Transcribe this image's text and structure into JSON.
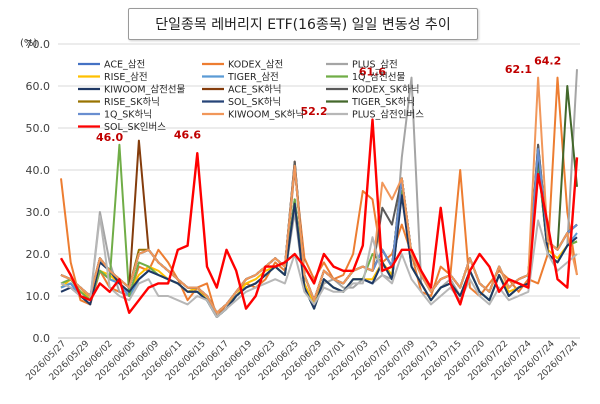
{
  "chart_data": {
    "type": "line",
    "title": "단일종목 레버리지 ETF(16종목) 일일 변동성 추이",
    "ylabel": "(%)",
    "xlabel": "",
    "ylim": [
      0,
      70
    ],
    "yticks": [
      "0.0",
      "10.0",
      "20.0",
      "30.0",
      "40.0",
      "50.0",
      "60.0",
      "70.0"
    ],
    "grid": true,
    "legend_position": "top-left",
    "x_tick_labels": [
      "2026/05/27",
      "2026/05/29",
      "2026/06/02",
      "2026/06/05",
      "2026/06/09",
      "2026/06/11",
      "2026/06/15",
      "2026/06/17",
      "2026/06/19",
      "2026/06/23",
      "2026/06/25",
      "2026/06/29",
      "2026/07/01",
      "2026/07/03",
      "2026/07/07",
      "2026/07/09",
      "2026/07/13",
      "2026/07/15",
      "2026/07/20",
      "2026/07/22",
      "2026/07/24",
      "2026/07/24",
      "2026/07/24"
    ],
    "annotations": [
      {
        "text": "46.0",
        "color": "#c00000",
        "index": 7,
        "value": 46.0
      },
      {
        "text": "46.6",
        "color": "#c00000",
        "index": 15,
        "value": 46.6
      },
      {
        "text": "52.2",
        "color": "#c00000",
        "index": 28,
        "value": 52.2
      },
      {
        "text": "61.6",
        "color": "#c00000",
        "index": 34,
        "value": 61.6
      },
      {
        "text": "62.1",
        "color": "#c00000",
        "index": 49,
        "value": 62.1
      },
      {
        "text": "64.2",
        "color": "#c00000",
        "index": 52,
        "value": 64.2
      }
    ],
    "series": [
      {
        "name": "ACE_삼전",
        "color": "#4472c4",
        "width": 2,
        "values": [
          12,
          13,
          10,
          8,
          16,
          14,
          13,
          10,
          14,
          16,
          15,
          14,
          13,
          11,
          11,
          9,
          5,
          7,
          10,
          12,
          13,
          15,
          17,
          15,
          33,
          12,
          7,
          14,
          12,
          11,
          14,
          14,
          13,
          18,
          14,
          35,
          17,
          13,
          9,
          12,
          13,
          10,
          16,
          11,
          9,
          15,
          10,
          12,
          13,
          42,
          20,
          18,
          22,
          23
        ]
      },
      {
        "name": "KODEX_삼전",
        "color": "#ed7d31",
        "width": 2,
        "values": [
          38,
          18,
          9,
          8,
          16,
          12,
          11,
          10,
          17,
          16,
          21,
          18,
          14,
          9,
          12,
          13,
          5,
          8,
          11,
          13,
          12,
          14,
          18,
          16,
          40,
          19,
          14,
          18,
          14,
          15,
          20,
          35,
          33,
          18,
          20,
          27,
          20,
          11,
          10,
          17,
          15,
          40,
          12,
          10,
          13,
          16,
          14,
          11,
          14,
          13,
          20,
          62,
          30,
          15
        ]
      },
      {
        "name": "PLUS_삼전",
        "color": "#a5a5a5",
        "width": 2,
        "values": [
          12,
          13,
          11,
          9,
          30,
          18,
          11,
          10,
          14,
          16,
          15,
          14,
          13,
          11,
          11,
          9,
          5,
          7,
          10,
          12,
          13,
          15,
          17,
          15,
          30,
          12,
          7,
          13,
          14,
          12,
          12,
          14,
          13,
          15,
          14,
          43,
          62,
          13,
          9,
          12,
          14,
          10,
          16,
          11,
          9,
          15,
          10,
          12,
          13,
          42,
          20,
          18,
          22,
          64
        ]
      },
      {
        "name": "RISE_삼전",
        "color": "#ffc000",
        "width": 2,
        "values": [
          12,
          14,
          12,
          9,
          16,
          15,
          13,
          11,
          15,
          17,
          16,
          14,
          13,
          11,
          12,
          9,
          6,
          8,
          10,
          13,
          14,
          16,
          17,
          15,
          33,
          13,
          8,
          14,
          12,
          11,
          14,
          14,
          14,
          18,
          15,
          35,
          17,
          13,
          9,
          12,
          13,
          10,
          16,
          11,
          9,
          15,
          11,
          12,
          13,
          42,
          21,
          19,
          22,
          23
        ]
      },
      {
        "name": "TIGER_삼전",
        "color": "#5b9bd5",
        "width": 2,
        "values": [
          12,
          13,
          10,
          9,
          16,
          14,
          13,
          10,
          14,
          16,
          15,
          14,
          13,
          11,
          11,
          9,
          5,
          7,
          10,
          12,
          13,
          15,
          17,
          15,
          33,
          12,
          7,
          14,
          12,
          11,
          14,
          14,
          13,
          18,
          14,
          35,
          17,
          13,
          9,
          12,
          13,
          10,
          16,
          11,
          9,
          15,
          10,
          12,
          13,
          43,
          20,
          18,
          22,
          25
        ]
      },
      {
        "name": "1Q_삼전선물",
        "color": "#70ad47",
        "width": 2,
        "values": [
          13,
          14,
          11,
          9,
          16,
          14,
          46,
          10,
          18,
          17,
          15,
          14,
          13,
          11,
          11,
          9,
          5,
          7,
          10,
          12,
          13,
          15,
          17,
          15,
          33,
          12,
          7,
          14,
          12,
          11,
          14,
          14,
          20,
          18,
          14,
          35,
          17,
          13,
          9,
          12,
          13,
          10,
          16,
          11,
          9,
          15,
          10,
          12,
          13,
          42,
          20,
          18,
          22,
          23
        ]
      },
      {
        "name": "KIWOOM_삼전선물",
        "color": "#1f3864",
        "width": 2,
        "values": [
          11,
          12,
          10,
          8,
          18,
          16,
          13,
          11,
          14,
          16,
          15,
          14,
          13,
          11,
          11,
          9,
          5,
          7,
          10,
          12,
          13,
          15,
          17,
          15,
          32,
          12,
          7,
          14,
          12,
          11,
          14,
          14,
          13,
          18,
          14,
          34,
          17,
          13,
          9,
          12,
          13,
          10,
          16,
          11,
          9,
          15,
          10,
          12,
          13,
          44,
          20,
          18,
          22,
          24
        ]
      },
      {
        "name": "ACE_SK하닉",
        "color": "#843c0c",
        "width": 2,
        "values": [
          15,
          14,
          12,
          10,
          19,
          16,
          14,
          12,
          47,
          21,
          18,
          16,
          14,
          12,
          12,
          10,
          6,
          8,
          11,
          14,
          15,
          17,
          19,
          17,
          42,
          15,
          9,
          16,
          14,
          13,
          16,
          17,
          16,
          21,
          17,
          38,
          20,
          15,
          11,
          14,
          15,
          12,
          19,
          13,
          11,
          17,
          12,
          14,
          15,
          46,
          23,
          21,
          25,
          27
        ]
      },
      {
        "name": "KODEX_SK하닉",
        "color": "#595959",
        "width": 2,
        "values": [
          15,
          14,
          12,
          10,
          19,
          16,
          14,
          12,
          20,
          21,
          18,
          16,
          14,
          12,
          12,
          10,
          6,
          8,
          11,
          14,
          15,
          17,
          19,
          17,
          42,
          15,
          9,
          16,
          14,
          13,
          16,
          17,
          16,
          31,
          27,
          38,
          20,
          15,
          11,
          14,
          15,
          12,
          19,
          13,
          11,
          17,
          12,
          14,
          15,
          46,
          23,
          21,
          25,
          27
        ]
      },
      {
        "name": "RISE_SK하닉",
        "color": "#997300",
        "width": 2,
        "values": [
          15,
          14,
          12,
          10,
          19,
          16,
          14,
          12,
          21,
          21,
          18,
          16,
          14,
          12,
          12,
          10,
          6,
          8,
          11,
          14,
          15,
          17,
          19,
          17,
          41,
          15,
          9,
          16,
          14,
          13,
          16,
          17,
          16,
          21,
          17,
          38,
          20,
          15,
          11,
          14,
          15,
          12,
          19,
          13,
          11,
          17,
          12,
          14,
          15,
          45,
          23,
          21,
          25,
          27
        ]
      },
      {
        "name": "SOL_SK하닉",
        "color": "#264478",
        "width": 2,
        "values": [
          15,
          14,
          12,
          10,
          19,
          16,
          14,
          12,
          20,
          21,
          18,
          16,
          14,
          12,
          12,
          10,
          6,
          8,
          11,
          14,
          15,
          17,
          19,
          17,
          41,
          15,
          9,
          16,
          14,
          13,
          16,
          17,
          16,
          21,
          17,
          38,
          20,
          15,
          11,
          14,
          15,
          12,
          19,
          13,
          11,
          17,
          12,
          14,
          15,
          45,
          23,
          21,
          25,
          27
        ]
      },
      {
        "name": "TIGER_SK하닉",
        "color": "#43682b",
        "width": 2,
        "values": [
          15,
          14,
          12,
          10,
          19,
          16,
          14,
          12,
          20,
          21,
          18,
          16,
          14,
          12,
          12,
          10,
          6,
          8,
          11,
          14,
          15,
          17,
          19,
          17,
          41,
          15,
          9,
          16,
          14,
          13,
          16,
          17,
          16,
          21,
          17,
          38,
          20,
          15,
          11,
          14,
          15,
          12,
          19,
          13,
          11,
          17,
          12,
          14,
          15,
          45,
          23,
          21,
          60,
          36
        ]
      },
      {
        "name": "1Q_SK하닉",
        "color": "#698ed0",
        "width": 2,
        "values": [
          15,
          14,
          12,
          10,
          19,
          16,
          14,
          12,
          20,
          21,
          18,
          16,
          14,
          12,
          12,
          10,
          6,
          8,
          11,
          14,
          15,
          17,
          19,
          17,
          41,
          15,
          9,
          16,
          14,
          13,
          16,
          17,
          16,
          21,
          17,
          38,
          20,
          15,
          11,
          14,
          15,
          12,
          19,
          13,
          11,
          17,
          12,
          14,
          15,
          45,
          23,
          21,
          25,
          27
        ]
      },
      {
        "name": "KIWOOM_SK하닉",
        "color": "#f1975a",
        "width": 2,
        "values": [
          15,
          14,
          12,
          10,
          19,
          16,
          14,
          12,
          20,
          21,
          18,
          16,
          14,
          12,
          12,
          10,
          6,
          8,
          11,
          14,
          15,
          17,
          19,
          17,
          41,
          15,
          9,
          16,
          14,
          13,
          16,
          17,
          16,
          37,
          33,
          38,
          20,
          15,
          11,
          14,
          15,
          12,
          19,
          13,
          11,
          17,
          12,
          14,
          15,
          62,
          23,
          21,
          25,
          15
        ]
      },
      {
        "name": "PLUS_삼전인버스",
        "color": "#b7b7b7",
        "width": 2,
        "values": [
          13,
          12,
          10,
          9,
          29,
          12,
          10,
          9,
          13,
          14,
          10,
          10,
          9,
          8,
          10,
          9,
          5,
          7,
          9,
          11,
          12,
          13,
          14,
          13,
          20,
          11,
          8,
          12,
          11,
          11,
          13,
          13,
          24,
          15,
          13,
          20,
          14,
          11,
          8,
          10,
          12,
          9,
          14,
          10,
          8,
          12,
          9,
          10,
          11,
          28,
          20,
          16,
          18,
          20
        ]
      },
      {
        "name": "SOL_SK인버스",
        "color": "#ff0000",
        "width": 2.4,
        "values": [
          19,
          15,
          10,
          9,
          13,
          11,
          14,
          6,
          9,
          12,
          13,
          13,
          21,
          22,
          44,
          17,
          12,
          21,
          16,
          7,
          10,
          17,
          17,
          18,
          20,
          17,
          13,
          20,
          17,
          16,
          16,
          22,
          52,
          16,
          17,
          21,
          21,
          16,
          12,
          31,
          13,
          8,
          16,
          20,
          17,
          11,
          14,
          13,
          12,
          39,
          27,
          14,
          12,
          43
        ]
      }
    ]
  }
}
